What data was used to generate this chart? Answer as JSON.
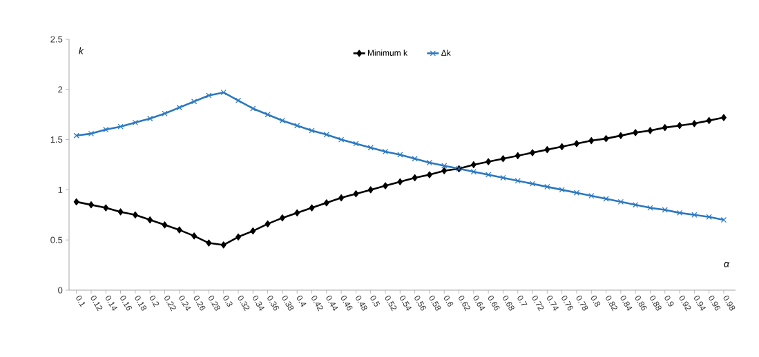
{
  "chart_data": {
    "type": "line",
    "categories": [
      "0.1",
      "0.12",
      "0.14",
      "0.16",
      "0.18",
      "0.2",
      "0.22",
      "0.24",
      "0.26",
      "0.28",
      "0.3",
      "0.32",
      "0.34",
      "0.36",
      "0.38",
      "0.4",
      "0.42",
      "0.44",
      "0.46",
      "0.48",
      "0.5",
      "0.52",
      "0.54",
      "0.56",
      "0.58",
      "0.6",
      "0.62",
      "0.64",
      "0.66",
      "0.68",
      "0.7",
      "0.72",
      "0.74",
      "0.76",
      "0.78",
      "0.8",
      "0.82",
      "0.84",
      "0.86",
      "0.88",
      "0.9",
      "0.92",
      "0.94",
      "0.96",
      "0.98"
    ],
    "series": [
      {
        "name": "Minimum k",
        "color": "#000000",
        "marker": "diamond",
        "values": [
          0.88,
          0.85,
          0.82,
          0.78,
          0.75,
          0.7,
          0.65,
          0.6,
          0.54,
          0.47,
          0.45,
          0.53,
          0.59,
          0.66,
          0.72,
          0.77,
          0.82,
          0.87,
          0.92,
          0.96,
          1.0,
          1.04,
          1.08,
          1.12,
          1.15,
          1.19,
          1.21,
          1.25,
          1.28,
          1.31,
          1.34,
          1.37,
          1.4,
          1.43,
          1.46,
          1.49,
          1.51,
          1.54,
          1.57,
          1.59,
          1.62,
          1.64,
          1.66,
          1.69,
          1.72
        ]
      },
      {
        "name": "Δk",
        "color": "#2a78c0",
        "marker": "cross",
        "values": [
          1.54,
          1.56,
          1.6,
          1.63,
          1.67,
          1.71,
          1.76,
          1.82,
          1.88,
          1.94,
          1.97,
          1.89,
          1.81,
          1.75,
          1.69,
          1.64,
          1.59,
          1.55,
          1.5,
          1.46,
          1.42,
          1.38,
          1.35,
          1.31,
          1.27,
          1.24,
          1.21,
          1.18,
          1.15,
          1.12,
          1.09,
          1.06,
          1.03,
          1.0,
          0.97,
          0.94,
          0.91,
          0.88,
          0.85,
          0.82,
          0.8,
          0.77,
          0.75,
          0.73,
          0.7
        ]
      }
    ],
    "xlabel": "α",
    "ylabel": "k",
    "ylim": [
      0,
      2.5
    ],
    "yticks": [
      0,
      0.5,
      1,
      1.5,
      2,
      2.5
    ],
    "grid": false,
    "legend": "top"
  }
}
